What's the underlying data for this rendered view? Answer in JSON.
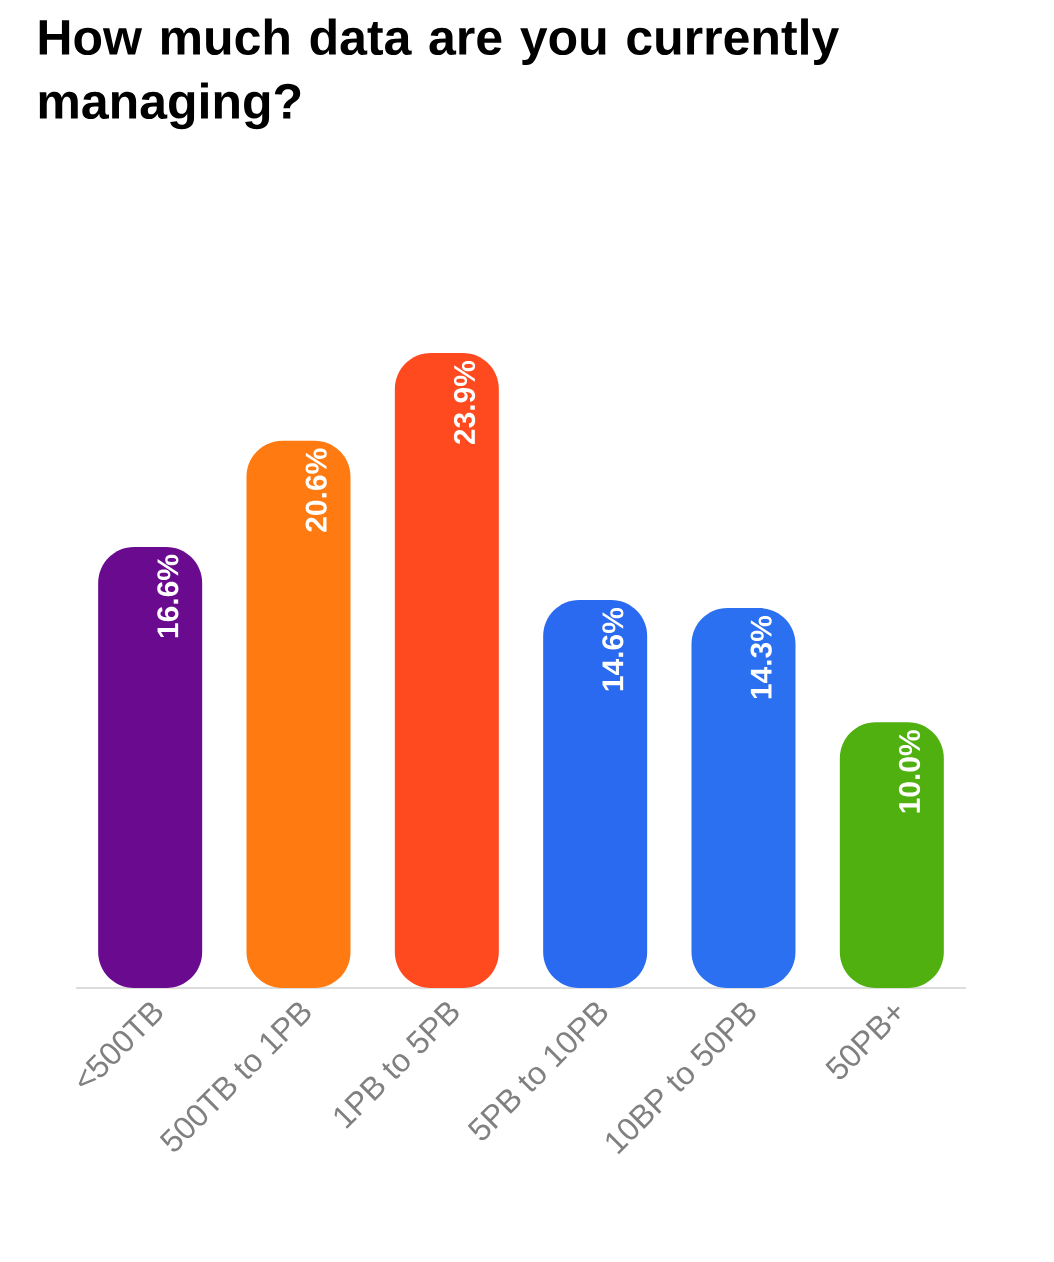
{
  "chart_data": {
    "type": "bar",
    "title": "How much data are you currently managing?",
    "categories": [
      "<500TB",
      "500TB to 1PB",
      "1PB to 5PB",
      "5PB to 10PB",
      "10BP to 50PB",
      "50PB+"
    ],
    "values": [
      16.6,
      20.6,
      23.9,
      14.6,
      14.3,
      10.0
    ],
    "value_labels": [
      "16.6%",
      "20.6%",
      "23.9%",
      "14.6%",
      "14.3%",
      "10.0%"
    ],
    "colors": [
      "#6a0a8e",
      "#ff7a10",
      "#ff4a20",
      "#2a6af0",
      "#2a70f0",
      "#50b010"
    ]
  }
}
